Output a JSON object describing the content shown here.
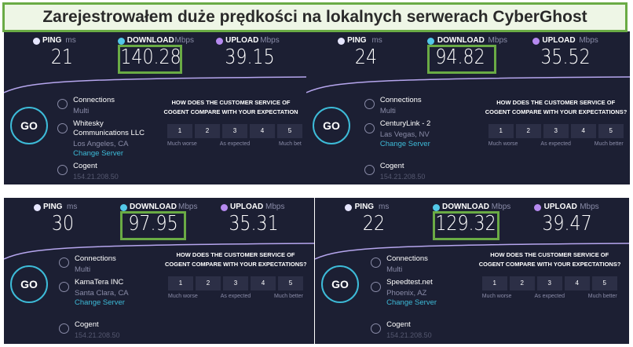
{
  "banner": {
    "title": "Zarejestrowałem duże prędkości na lokalnych serwerach CyberGhost"
  },
  "panels": [
    {
      "ping": {
        "label": "PING",
        "unit": "ms",
        "value": "21"
      },
      "download": {
        "label": "DOWNLOAD",
        "unit": "Mbps",
        "value": "140.28"
      },
      "upload": {
        "label": "UPLOAD",
        "unit": "Mbps",
        "value": "39.15"
      },
      "go": "GO",
      "connections": {
        "label": "Connections",
        "value": "Multi"
      },
      "isp": {
        "name": "Whitesky Communications LLC",
        "location": "Los Angeles, CA",
        "change": "Change Server"
      },
      "host": {
        "name": "Cogent",
        "ip": "154.21.208.50"
      },
      "survey": {
        "question": [
          "HOW DOES THE CUSTOMER SERVICE OF",
          "COGENT COMPARE WITH YOUR EXPECTATION"
        ],
        "scale": [
          "1",
          "2",
          "3",
          "4",
          "5"
        ],
        "labels": [
          "Much worse",
          "As expected",
          "Much bet"
        ]
      }
    },
    {
      "ping": {
        "label": "PING",
        "unit": "ms",
        "value": "24"
      },
      "download": {
        "label": "DOWNLOAD",
        "unit": "Mbps",
        "value": "94.82"
      },
      "upload": {
        "label": "UPLOAD",
        "unit": "Mbps",
        "value": "35.52"
      },
      "go": "GO",
      "connections": {
        "label": "Connections",
        "value": "Multi"
      },
      "isp": {
        "name": "CenturyLink - 2",
        "location": "Las Vegas, NV",
        "change": "Change Server"
      },
      "host": {
        "name": "Cogent",
        "ip": "154.21.208.50"
      },
      "survey": {
        "question": [
          "HOW DOES THE CUSTOMER SERVICE OF",
          "COGENT COMPARE WITH YOUR EXPECTATIONS?"
        ],
        "scale": [
          "1",
          "2",
          "3",
          "4",
          "5"
        ],
        "labels": [
          "Much worse",
          "As expected",
          "Much better"
        ]
      }
    },
    {
      "ping": {
        "label": "PING",
        "unit": "ms",
        "value": "30"
      },
      "download": {
        "label": "DOWNLOAD",
        "unit": "Mbps",
        "value": "97.95"
      },
      "upload": {
        "label": "UPLOAD",
        "unit": "Mbps",
        "value": "35.31"
      },
      "go": "GO",
      "connections": {
        "label": "Connections",
        "value": "Multi"
      },
      "isp": {
        "name": "KamaTera INC",
        "location": "Santa Clara, CA",
        "change": "Change Server"
      },
      "host": {
        "name": "Cogent",
        "ip": "154.21.208.50"
      },
      "survey": {
        "question": [
          "HOW DOES THE CUSTOMER SERVICE OF",
          "COGENT COMPARE WITH YOUR EXPECTATIONS?"
        ],
        "scale": [
          "1",
          "2",
          "3",
          "4",
          "5"
        ],
        "labels": [
          "Much worse",
          "As expected",
          "Much better"
        ]
      }
    },
    {
      "ping": {
        "label": "PING",
        "unit": "ms",
        "value": "22"
      },
      "download": {
        "label": "DOWNLOAD",
        "unit": "Mbps",
        "value": "129.32"
      },
      "upload": {
        "label": "UPLOAD",
        "unit": "Mbps",
        "value": "39.47"
      },
      "go": "GO",
      "connections": {
        "label": "Connections",
        "value": "Multi"
      },
      "isp": {
        "name": "Speedtest.net",
        "location": "Phoenix, AZ",
        "change": "Change Server"
      },
      "host": {
        "name": "Cogent",
        "ip": "154.21.208.50"
      },
      "survey": {
        "question": [
          "HOW DOES THE CUSTOMER SERVICE OF",
          "COGENT COMPARE WITH YOUR EXPECTATIONS?"
        ],
        "scale": [
          "1",
          "2",
          "3",
          "4",
          "5"
        ],
        "labels": [
          "Much worse",
          "As expected",
          "Much better"
        ]
      }
    }
  ]
}
